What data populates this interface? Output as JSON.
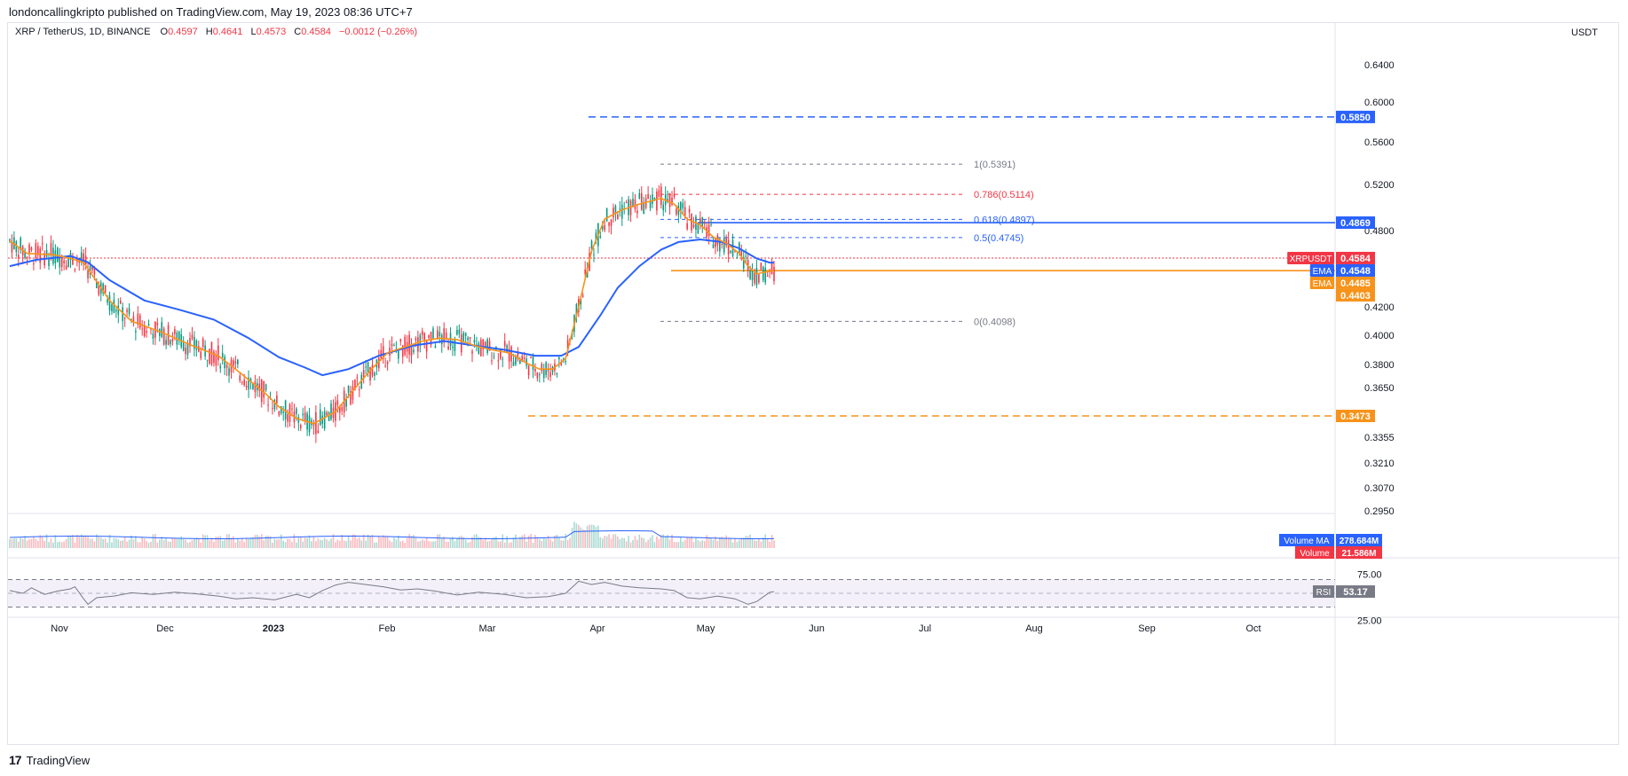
{
  "header": {
    "publisher": "londoncallingkripto published on TradingView.com, May 19, 2023 08:36 UTC+7"
  },
  "legend": {
    "symbol": "XRP / TetherUS, 1D, BINANCE",
    "open_label": "O",
    "open": "0.4597",
    "high_label": "H",
    "high": "0.4641",
    "low_label": "L",
    "low": "0.4573",
    "close_label": "C",
    "close": "0.4584",
    "change": "−0.0012 (−0.26%)"
  },
  "footer": {
    "logo_mark": "17",
    "brand": "TradingView"
  },
  "chart_data": {
    "type": "candlestick",
    "currency_label": "USDT",
    "price_axis_ticks": [
      "0.6400",
      "0.6000",
      "0.5600",
      "0.5200",
      "0.4800",
      "0.4200",
      "0.4000",
      "0.3800",
      "0.3650",
      "0.3473",
      "0.3355",
      "0.3210",
      "0.3070",
      "0.2950"
    ],
    "time_axis_ticks": [
      "Nov",
      "Dec",
      "2023",
      "Feb",
      "Mar",
      "Apr",
      "May",
      "Jun",
      "Jul",
      "Aug",
      "Sep",
      "Oct"
    ],
    "price_labels": [
      {
        "text": "0.5850",
        "color": "#2962ff"
      },
      {
        "text": "0.4869",
        "color": "#2962ff"
      },
      {
        "text": "XRPUSDT",
        "color": "#f23645"
      },
      {
        "text": "0.4584",
        "color": "#f23645"
      },
      {
        "text": "EMA",
        "color": "#2962ff"
      },
      {
        "text": "0.4548",
        "color": "#2962ff"
      },
      {
        "text": "EMA",
        "color": "#f7931a"
      },
      {
        "text": "0.4485",
        "color": "#f7931a"
      },
      {
        "text": "0.4403",
        "color": "#f7931a"
      },
      {
        "text": "0.3473",
        "color": "#f7931a"
      }
    ],
    "horizontal_levels": [
      {
        "price": 0.585,
        "color": "#2962ff",
        "style": "dashed"
      },
      {
        "price": 0.4869,
        "color": "#2962ff",
        "style": "solid"
      },
      {
        "price": 0.4485,
        "color": "#f7931a",
        "style": "solid"
      },
      {
        "price": 0.3473,
        "color": "#f7931a",
        "style": "dashed"
      },
      {
        "price": 0.4584,
        "color": "#f23645",
        "style": "dotted"
      }
    ],
    "fibonacci_levels": [
      {
        "label": "1(0.5391)",
        "price": 0.5391,
        "color": "#787b86"
      },
      {
        "label": "0.786(0.5114)",
        "price": 0.5114,
        "color": "#f23645"
      },
      {
        "label": "0.618(0.4897)",
        "price": 0.4897,
        "color": "#2962ff"
      },
      {
        "label": "0.5(0.4745)",
        "price": 0.4745,
        "color": "#2962ff"
      },
      {
        "label": "0(0.4098)",
        "price": 0.4098,
        "color": "#787b86"
      }
    ],
    "ema_fast": {
      "name": "EMA",
      "color": "#f7931a",
      "points": [
        [
          0,
          0.472
        ],
        [
          8,
          0.462
        ],
        [
          20,
          0.461
        ],
        [
          28,
          0.458
        ],
        [
          34,
          0.455
        ],
        [
          40,
          0.44
        ],
        [
          46,
          0.425
        ],
        [
          56,
          0.41
        ],
        [
          70,
          0.402
        ],
        [
          84,
          0.393
        ],
        [
          96,
          0.386
        ],
        [
          104,
          0.377
        ],
        [
          110,
          0.37
        ],
        [
          118,
          0.361
        ],
        [
          124,
          0.353
        ],
        [
          132,
          0.346
        ],
        [
          140,
          0.343
        ],
        [
          150,
          0.35
        ],
        [
          158,
          0.363
        ],
        [
          166,
          0.376
        ],
        [
          174,
          0.388
        ],
        [
          182,
          0.392
        ],
        [
          190,
          0.396
        ],
        [
          198,
          0.398
        ],
        [
          206,
          0.397
        ],
        [
          214,
          0.393
        ],
        [
          222,
          0.39
        ],
        [
          230,
          0.388
        ],
        [
          238,
          0.381
        ],
        [
          244,
          0.377
        ],
        [
          250,
          0.377
        ],
        [
          256,
          0.384
        ],
        [
          262,
          0.42
        ],
        [
          268,
          0.464
        ],
        [
          274,
          0.49
        ],
        [
          282,
          0.498
        ],
        [
          290,
          0.503
        ],
        [
          300,
          0.508
        ],
        [
          306,
          0.503
        ],
        [
          312,
          0.49
        ],
        [
          318,
          0.485
        ],
        [
          324,
          0.475
        ],
        [
          330,
          0.47
        ],
        [
          336,
          0.462
        ],
        [
          340,
          0.452
        ],
        [
          344,
          0.446
        ],
        [
          350,
          0.448
        ],
        [
          352,
          0.4485
        ]
      ]
    },
    "ema_slow": {
      "name": "EMA",
      "color": "#2962ff",
      "points": [
        [
          0,
          0.452
        ],
        [
          12,
          0.457
        ],
        [
          28,
          0.46
        ],
        [
          36,
          0.455
        ],
        [
          46,
          0.441
        ],
        [
          62,
          0.425
        ],
        [
          78,
          0.418
        ],
        [
          94,
          0.411
        ],
        [
          110,
          0.398
        ],
        [
          124,
          0.385
        ],
        [
          136,
          0.378
        ],
        [
          144,
          0.373
        ],
        [
          156,
          0.377
        ],
        [
          170,
          0.386
        ],
        [
          186,
          0.393
        ],
        [
          200,
          0.396
        ],
        [
          214,
          0.393
        ],
        [
          228,
          0.39
        ],
        [
          242,
          0.386
        ],
        [
          254,
          0.386
        ],
        [
          262,
          0.392
        ],
        [
          272,
          0.414
        ],
        [
          280,
          0.435
        ],
        [
          290,
          0.452
        ],
        [
          300,
          0.465
        ],
        [
          308,
          0.471
        ],
        [
          318,
          0.473
        ],
        [
          328,
          0.471
        ],
        [
          336,
          0.466
        ],
        [
          344,
          0.458
        ],
        [
          350,
          0.4548
        ],
        [
          352,
          0.4548
        ]
      ]
    },
    "volume": {
      "ma_label": "Volume MA",
      "ma_value": "278.684M",
      "label": "Volume",
      "value": "21.586M"
    },
    "rsi": {
      "label": "RSI",
      "value": "53.17",
      "upper": "75.00",
      "lower": "25.00",
      "points": [
        [
          0,
          55
        ],
        [
          6,
          50
        ],
        [
          10,
          60
        ],
        [
          16,
          48
        ],
        [
          22,
          54
        ],
        [
          28,
          58
        ],
        [
          30,
          62
        ],
        [
          34,
          40
        ],
        [
          36,
          30
        ],
        [
          40,
          42
        ],
        [
          48,
          45
        ],
        [
          56,
          51
        ],
        [
          66,
          48
        ],
        [
          76,
          52
        ],
        [
          86,
          49
        ],
        [
          96,
          45
        ],
        [
          104,
          40
        ],
        [
          112,
          42
        ],
        [
          122,
          38
        ],
        [
          132,
          48
        ],
        [
          138,
          42
        ],
        [
          144,
          55
        ],
        [
          150,
          65
        ],
        [
          156,
          70
        ],
        [
          164,
          66
        ],
        [
          172,
          62
        ],
        [
          180,
          56
        ],
        [
          188,
          58
        ],
        [
          196,
          54
        ],
        [
          206,
          47
        ],
        [
          216,
          52
        ],
        [
          228,
          48
        ],
        [
          238,
          42
        ],
        [
          248,
          44
        ],
        [
          256,
          50
        ],
        [
          262,
          72
        ],
        [
          268,
          66
        ],
        [
          274,
          70
        ],
        [
          282,
          63
        ],
        [
          290,
          60
        ],
        [
          300,
          58
        ],
        [
          306,
          55
        ],
        [
          312,
          42
        ],
        [
          318,
          40
        ],
        [
          326,
          45
        ],
        [
          334,
          40
        ],
        [
          340,
          30
        ],
        [
          344,
          35
        ],
        [
          350,
          52
        ],
        [
          352,
          53
        ]
      ]
    }
  }
}
